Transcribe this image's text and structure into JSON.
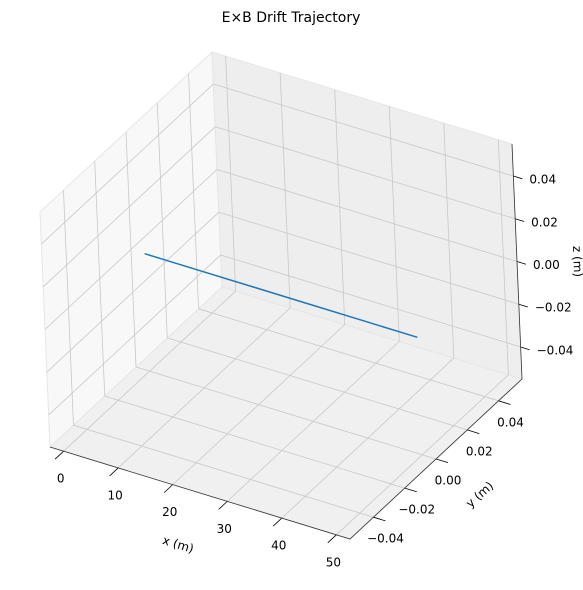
{
  "chart_data": {
    "type": "line3d",
    "title": "E×B Drift Trajectory",
    "xlabel": "x (m)",
    "ylabel": "y (m)",
    "zlabel": "z (m)",
    "series": [
      {
        "color": "#1f77b4",
        "x": [
          0,
          10,
          20,
          30,
          40,
          50
        ],
        "y": [
          0,
          0,
          0,
          0,
          0,
          0
        ],
        "z": [
          0,
          0,
          0,
          0,
          0,
          0
        ]
      }
    ],
    "xlim": [
      -2.5,
      52.5
    ],
    "ylim": [
      -0.055,
      0.055
    ],
    "zlim": [
      -0.055,
      0.055
    ],
    "xticks": [
      0,
      10,
      20,
      30,
      40,
      50
    ],
    "yticks": [
      {
        "value": -0.04,
        "label": "−0.04"
      },
      {
        "value": -0.02,
        "label": "−0.02"
      },
      {
        "value": 0,
        "label": "0.00"
      },
      0.02,
      0.04
    ],
    "zticks": [
      {
        "value": -0.04,
        "label": "−0.04"
      },
      {
        "value": -0.02,
        "label": "−0.02"
      },
      {
        "value": 0,
        "label": "0.00"
      },
      0.02,
      0.04
    ],
    "grid": true
  }
}
